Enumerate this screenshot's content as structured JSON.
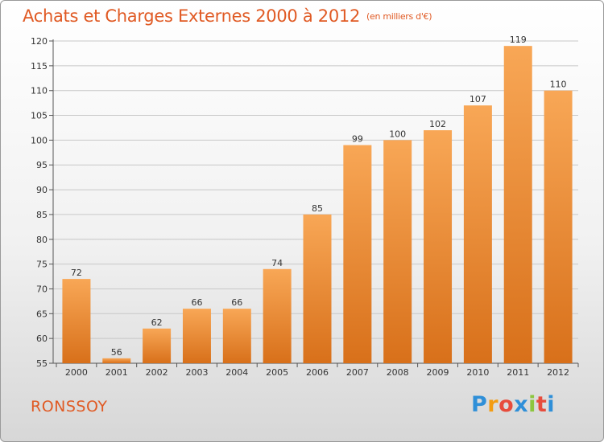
{
  "title": "Achats et Charges Externes 2000 à 2012",
  "subtitle": "(en milliers d'€)",
  "commune": "RONSSOY",
  "logo": {
    "letters": [
      "P",
      "r",
      "o",
      "x",
      "i",
      "t",
      "i"
    ],
    "colors": [
      "#2f8fd8",
      "#f39c12",
      "#e74c3c",
      "#2f8fd8",
      "#8dc63f",
      "#e74c3c",
      "#2f8fd8"
    ]
  },
  "colors": {
    "bar_top": "#f8a756",
    "bar_bottom": "#d8701a",
    "title": "#e05a24",
    "grid": "#c8c8c8"
  },
  "chart_data": {
    "type": "bar",
    "categories": [
      "2000",
      "2001",
      "2002",
      "2003",
      "2004",
      "2005",
      "2006",
      "2007",
      "2008",
      "2009",
      "2010",
      "2011",
      "2012"
    ],
    "values": [
      72,
      56,
      62,
      66,
      66,
      74,
      85,
      99,
      100,
      102,
      107,
      119,
      110
    ],
    "title": "Achats et Charges Externes 2000 à 2012",
    "subtitle": "(en milliers d'€)",
    "xlabel": "",
    "ylabel": "",
    "ylim": [
      55,
      120
    ],
    "yticks": [
      55,
      60,
      65,
      70,
      75,
      80,
      85,
      90,
      95,
      100,
      105,
      110,
      115,
      120
    ],
    "grid": true,
    "data_labels": true
  }
}
